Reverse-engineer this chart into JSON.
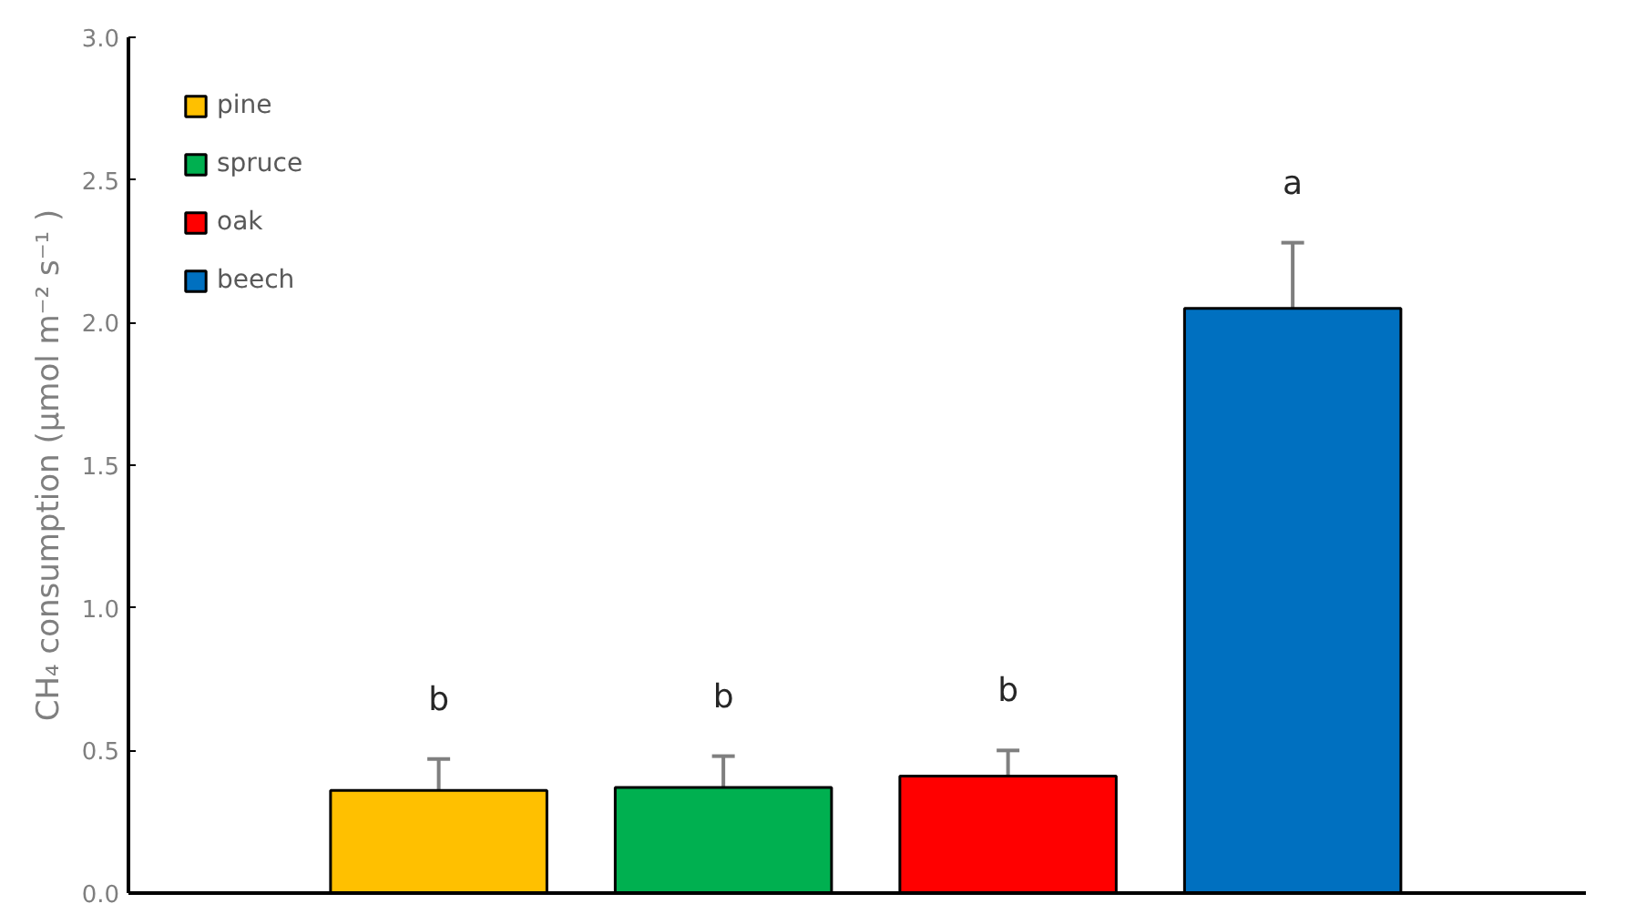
{
  "chart_data": {
    "type": "bar",
    "ylabel": "CH₄ consumption (µmol m⁻² s⁻¹ )",
    "categories": [
      null,
      null,
      null,
      null
    ],
    "series": [
      {
        "name": "pine",
        "color": "#ffc000",
        "values": [
          0.36,
          null,
          null,
          null
        ],
        "errors": [
          0.11,
          null,
          null,
          null
        ]
      },
      {
        "name": "spruce",
        "color": "#00b050",
        "values": [
          null,
          0.37,
          null,
          null
        ],
        "errors": [
          null,
          0.11,
          null,
          null
        ]
      },
      {
        "name": "oak",
        "color": "#ff0000",
        "values": [
          null,
          null,
          0.41,
          null
        ],
        "errors": [
          null,
          null,
          0.09,
          null
        ]
      },
      {
        "name": "beech",
        "color": "#0070c0",
        "values": [
          null,
          null,
          null,
          2.05
        ],
        "errors": [
          null,
          null,
          null,
          0.23
        ]
      }
    ],
    "annotations": [
      "b",
      "b",
      "b",
      "a"
    ],
    "ylim": [
      0,
      3
    ],
    "yticks": [
      {
        "value": 0,
        "label": "0.0"
      },
      {
        "value": 0.5,
        "label": "0.5"
      },
      {
        "value": 1,
        "label": "1.0"
      },
      {
        "value": 1.5,
        "label": "1.5"
      },
      {
        "value": 2,
        "label": "2.0"
      },
      {
        "value": 2.5,
        "label": "2.5"
      },
      {
        "value": 3,
        "label": "3.0"
      }
    ],
    "tick_labels": "y",
    "grid": false,
    "legend": "top left"
  }
}
